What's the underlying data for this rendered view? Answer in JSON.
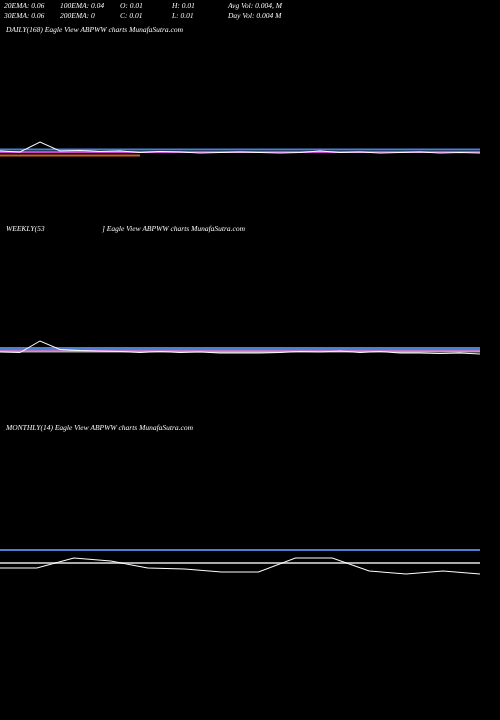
{
  "header": {
    "rows": [
      [
        "20EMA: 0.06",
        "100EMA: 0.04",
        "O: 0.01",
        "H: 0.01",
        "Avg Vol: 0.004, M"
      ],
      [
        "30EMA: 0.06",
        "200EMA: 0",
        "C: 0.01",
        "L: 0.01",
        "Day Vol: 0.004  M"
      ]
    ]
  },
  "chart_data": [
    {
      "type": "line",
      "title": "DAILY(168) Eagle   View  ABPWW charts MunafaSutra.com",
      "x": [
        0,
        1,
        2,
        3,
        4,
        5,
        6,
        7,
        8,
        9,
        10,
        11,
        12,
        13,
        14,
        15,
        16,
        17,
        18,
        19,
        20,
        21,
        22,
        23,
        24
      ],
      "xlim": [
        0,
        24
      ],
      "ylim": [
        0,
        0.02
      ],
      "series": [
        {
          "color": "#4a7fd4",
          "values": [
            0.0101,
            0.0101,
            0.0101,
            0.0101,
            0.0101,
            0.0101,
            0.0101,
            0.0101,
            0.0101,
            0.0101,
            0.0101,
            0.0101,
            0.0101,
            0.0101,
            0.0101,
            0.0101,
            0.0101,
            0.0101,
            0.0101,
            0.0101,
            0.0101,
            0.0101,
            0.0101,
            0.0101,
            0.0101
          ]
        },
        {
          "color": "#d040d0",
          "values": [
            0.0096,
            0.0096,
            0.0096,
            0.0096,
            0.0096,
            0.0096,
            0.0096,
            0.0096,
            0.0096,
            0.0096,
            0.0096,
            0.0096,
            0.0096,
            0.0096,
            0.0096,
            0.0096,
            0.0096,
            0.0096,
            0.0096,
            0.0096,
            0.0096,
            0.0096,
            0.0096,
            0.0096,
            0.0096
          ]
        },
        {
          "color": "#d06020",
          "values": [
            0.0089,
            0.0089,
            0.0089,
            0.0089,
            0.0089,
            0.0089,
            0.0089,
            0.0089,
            null,
            null,
            null,
            null,
            null,
            null,
            null,
            null,
            null,
            null,
            null,
            null,
            null,
            null,
            null,
            null,
            null
          ]
        },
        {
          "color": "#ffffff",
          "values": [
            0.0098,
            0.0096,
            0.0116,
            0.0098,
            0.0099,
            0.0097,
            0.0098,
            0.0095,
            0.0097,
            0.0096,
            0.0094,
            0.0095,
            0.0096,
            0.0095,
            0.0094,
            0.0095,
            0.0098,
            0.0095,
            0.0096,
            0.0094,
            0.0095,
            0.0096,
            0.0094,
            0.0095,
            0.0094
          ]
        }
      ]
    },
    {
      "type": "line",
      "title": "WEEKLY(53",
      "subtitle": "] Eagle   View  ABPWW charts MunafaSutra.com",
      "x": [
        0,
        1,
        2,
        3,
        4,
        5,
        6,
        7,
        8,
        9,
        10,
        11,
        12,
        13,
        14,
        15,
        16,
        17,
        18,
        19,
        20,
        21,
        22,
        23,
        24
      ],
      "xlim": [
        0,
        24
      ],
      "ylim": [
        0,
        0.02
      ],
      "series": [
        {
          "color": "#4a7fd4",
          "values": [
            0.0104,
            0.0104,
            0.0104,
            0.0104,
            0.0104,
            0.0104,
            0.0104,
            0.0104,
            0.0104,
            0.0104,
            0.0104,
            0.0104,
            0.0104,
            0.0104,
            0.0104,
            0.0104,
            0.0104,
            0.0104,
            0.0104,
            0.0104,
            0.0104,
            0.0104,
            0.0104,
            0.0104,
            0.0104
          ]
        },
        {
          "color": "#d040d0",
          "values": [
            0.01,
            0.01,
            0.01,
            0.01,
            0.01,
            0.01,
            0.01,
            0.01,
            0.01,
            0.01,
            0.01,
            0.01,
            0.01,
            0.01,
            0.01,
            0.01,
            0.01,
            0.01,
            0.01,
            0.01,
            0.01,
            0.01,
            0.01,
            0.01,
            0.01
          ]
        },
        {
          "color": "#aaaaaa",
          "values": [
            0.0097,
            0.0097,
            0.0097,
            0.0097,
            0.0097,
            0.0097,
            0.0097,
            0.0097,
            0.0097,
            0.0097,
            0.0097,
            0.0097,
            0.0097,
            0.0097,
            0.0097,
            0.0097,
            0.0097,
            0.0097,
            0.0097,
            0.0097,
            0.0097,
            0.0097,
            0.0097,
            0.0097,
            0.0097
          ]
        },
        {
          "color": "#ffffff",
          "values": [
            0.0096,
            0.0095,
            0.0118,
            0.0101,
            0.0099,
            0.0098,
            0.0097,
            0.0095,
            0.0097,
            0.0095,
            0.0096,
            0.0094,
            0.0094,
            0.0094,
            0.0095,
            0.0097,
            0.0096,
            0.0098,
            0.0095,
            0.0097,
            0.0094,
            0.0094,
            0.0093,
            0.0094,
            0.0092
          ]
        }
      ]
    },
    {
      "type": "line",
      "title": "MONTHLY(14) Eagle   View  ABPWW charts MunafaSutra.com",
      "x": [
        0,
        1,
        2,
        3,
        4,
        5,
        6,
        7,
        8,
        9,
        10,
        11,
        12,
        13
      ],
      "xlim": [
        0,
        13
      ],
      "ylim": [
        0,
        0.02
      ],
      "series": [
        {
          "color": "#4a7fd4",
          "values": [
            0.01,
            0.01,
            0.01,
            0.01,
            0.01,
            0.01,
            0.01,
            0.01,
            0.01,
            0.01,
            0.01,
            0.01,
            0.01,
            0.01
          ]
        },
        {
          "color": "#aaaaaa",
          "values": [
            0.0074,
            0.0074,
            0.0074,
            0.0074,
            0.0074,
            0.0074,
            0.0074,
            0.0074,
            0.0074,
            0.0074,
            0.0074,
            0.0074,
            0.0074,
            0.0074
          ]
        },
        {
          "color": "#ffffff",
          "values": [
            0.0064,
            0.0064,
            0.0084,
            0.0078,
            0.0064,
            0.0062,
            0.0056,
            0.0056,
            0.0084,
            0.0084,
            0.0058,
            0.0052,
            0.0058,
            0.0052
          ]
        }
      ]
    }
  ]
}
